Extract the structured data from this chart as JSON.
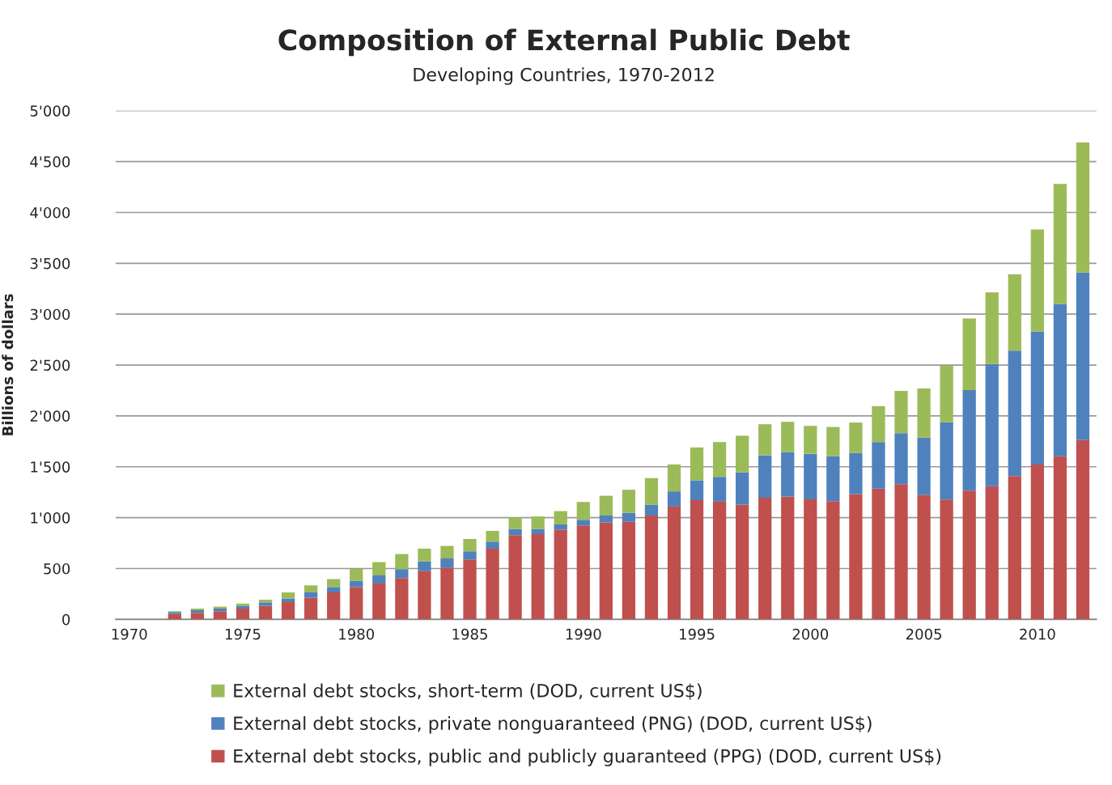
{
  "chart_data": {
    "type": "bar",
    "title": "Composition of External Public Debt",
    "subtitle": "Developing Countries, 1970-2012",
    "ylabel": "Billions of dollars",
    "categories": [
      "1970",
      null,
      null,
      null,
      null,
      "1975",
      null,
      null,
      null,
      null,
      "1980",
      null,
      null,
      null,
      null,
      "1985",
      null,
      null,
      null,
      null,
      "1990",
      null,
      null,
      null,
      null,
      "1995",
      null,
      null,
      null,
      null,
      "2000",
      null,
      null,
      null,
      null,
      "2005",
      null,
      null,
      null,
      null,
      "2010",
      null,
      null
    ],
    "stacked": true,
    "series": [
      {
        "name": "External debt stocks, public and publicly guaranteed (PPG) (DOD, current US$)",
        "color": "#c0504d",
        "values": [
          null,
          null,
          52,
          64,
          80,
          106,
          133,
          170,
          212,
          265,
          318,
          353,
          406,
          475,
          509,
          589,
          695,
          828,
          838,
          881,
          923,
          953,
          959,
          1021,
          1109,
          1172,
          1157,
          1128,
          1196,
          1207,
          1180,
          1162,
          1231,
          1285,
          1329,
          1222,
          1178,
          1266,
          1310,
          1408,
          1522,
          1604,
          1762
        ]
      },
      {
        "name": "External debt stocks, private nonguaranteed (PNG) (DOD, current US$)",
        "color": "#4f81bd",
        "values": [
          null,
          null,
          20,
          26,
          26,
          24,
          34,
          35,
          53,
          53,
          62,
          79,
          88,
          96,
          90,
          80,
          69,
          61,
          51,
          53,
          56,
          68,
          89,
          107,
          149,
          195,
          244,
          318,
          416,
          438,
          448,
          442,
          404,
          458,
          502,
          565,
          760,
          988,
          1200,
          1234,
          1307,
          1496,
          1648
        ]
      },
      {
        "name": "External debt stocks, short-term (DOD, current US$)",
        "color": "#9bbb59",
        "values": [
          null,
          null,
          8,
          16,
          19,
          25,
          26,
          60,
          69,
          78,
          116,
          131,
          148,
          124,
          123,
          121,
          106,
          114,
          122,
          130,
          175,
          194,
          226,
          261,
          265,
          323,
          342,
          359,
          306,
          297,
          274,
          287,
          300,
          353,
          414,
          483,
          556,
          704,
          704,
          749,
          1004,
          1181,
          1278
        ]
      }
    ],
    "ylim": [
      0,
      5000
    ],
    "yticks": [
      0,
      {
        "value": 500,
        "label": "500"
      },
      {
        "value": 1000,
        "label": "1'000"
      },
      {
        "value": 1500,
        "label": "1'500"
      },
      {
        "value": 2000,
        "label": "2'000"
      },
      {
        "value": 2500,
        "label": "2'500"
      },
      {
        "value": 3000,
        "label": "3'000"
      },
      {
        "value": 3500,
        "label": "3'500"
      },
      {
        "value": 4000,
        "label": "4'000"
      },
      {
        "value": 4500,
        "label": "4'500"
      },
      {
        "value": 5000,
        "label": "5'000"
      }
    ],
    "grid": "y",
    "legend": "bottom"
  }
}
